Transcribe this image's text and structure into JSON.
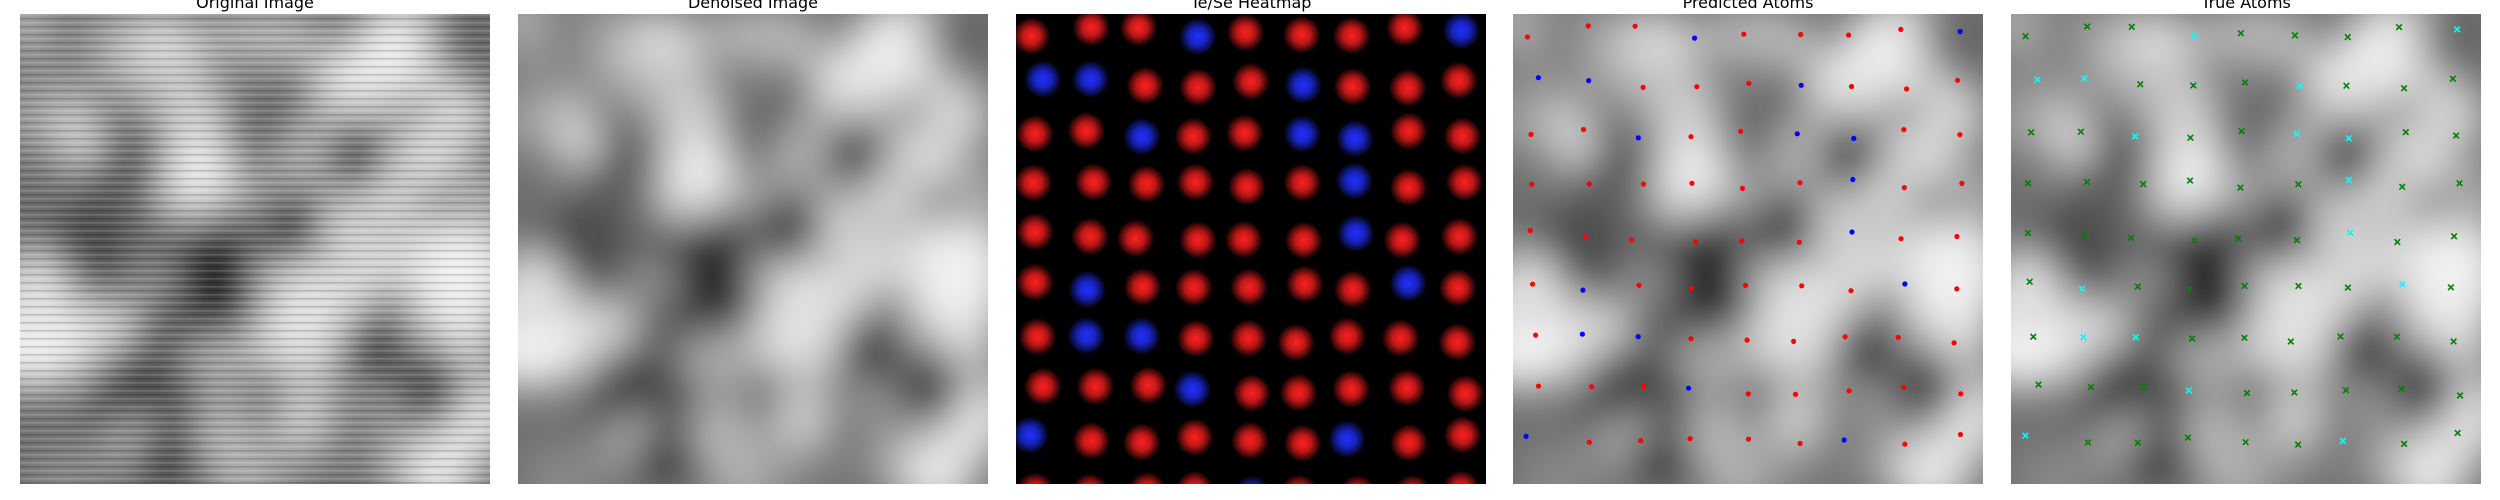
{
  "figure": {
    "panels": [
      {
        "id": "original",
        "title": "Original Image",
        "kind": "grayscale",
        "seed": 11,
        "noise": true
      },
      {
        "id": "denoised",
        "title": "Denoised Image",
        "kind": "grayscale",
        "seed": 11,
        "noise": false
      },
      {
        "id": "heatmap",
        "title": "Te/Se Heatmap",
        "kind": "heatmap"
      },
      {
        "id": "predicted",
        "title": "Predicted Atoms",
        "kind": "atoms",
        "marker": "dot",
        "colors": {
          "a": "#ff0000",
          "b": "#0000ff"
        }
      },
      {
        "id": "true",
        "title": "True Atoms",
        "kind": "atoms",
        "marker": "x",
        "colors": {
          "a": "#008000",
          "b": "#00ffff"
        }
      }
    ],
    "colors": {
      "te": "#ff2020",
      "se": "#2030ff",
      "heatmap_bg": "#000000"
    }
  }
}
